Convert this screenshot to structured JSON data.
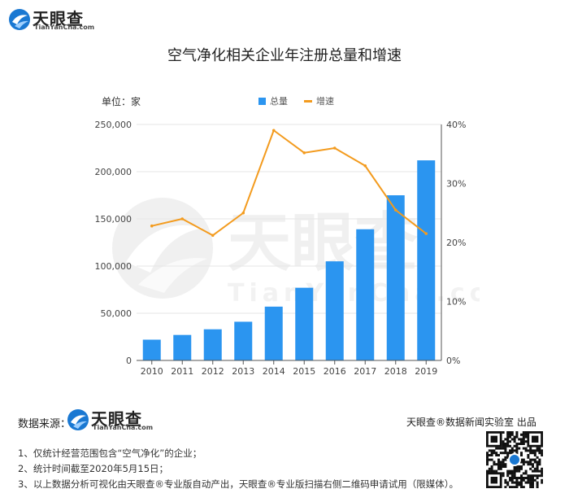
{
  "brand": {
    "name": "天眼查",
    "domain": "TianYanCha.com"
  },
  "title": "空气净化相关企业年注册总量和增速",
  "unit_label": "单位：家",
  "legend": {
    "bar": "总量",
    "line": "增速"
  },
  "source_label": "数据来源：",
  "credit": "天眼查®数据新闻实验室 出品",
  "notes": [
    "1、仅统计经营范围包含“空气净化”的企业；",
    "2、统计时间截至2020年5月15日；",
    "3、以上数据分析可视化由天眼查®专业版自动产出，天眼查®专业版扫描右侧二维码申请试用（限媒体）。"
  ],
  "colors": {
    "bar": "#2b95f0",
    "line": "#f39b1e",
    "grid": "#e6e6e6",
    "axis": "#555555"
  },
  "chart_data": {
    "type": "bar",
    "categories": [
      "2010",
      "2011",
      "2012",
      "2013",
      "2014",
      "2015",
      "2016",
      "2017",
      "2018",
      "2019"
    ],
    "series": [
      {
        "name": "总量",
        "type": "bar",
        "axis": "left",
        "values": [
          22000,
          27000,
          33000,
          41000,
          57000,
          77000,
          105000,
          139000,
          175000,
          212000
        ]
      },
      {
        "name": "增速",
        "type": "line",
        "axis": "right",
        "values": [
          22.8,
          24.0,
          21.2,
          25.0,
          39.0,
          35.2,
          36.0,
          33.0,
          25.5,
          21.5
        ]
      }
    ],
    "y_left": {
      "ticks": [
        "0",
        "50,000",
        "100,000",
        "150,000",
        "200,000",
        "250,000"
      ],
      "min": 0,
      "max": 250000
    },
    "y_right": {
      "ticks": [
        "0%",
        "10%",
        "20%",
        "30%",
        "40%"
      ],
      "min": 0,
      "max": 40
    },
    "grid": true,
    "legend_position": "top-center"
  }
}
